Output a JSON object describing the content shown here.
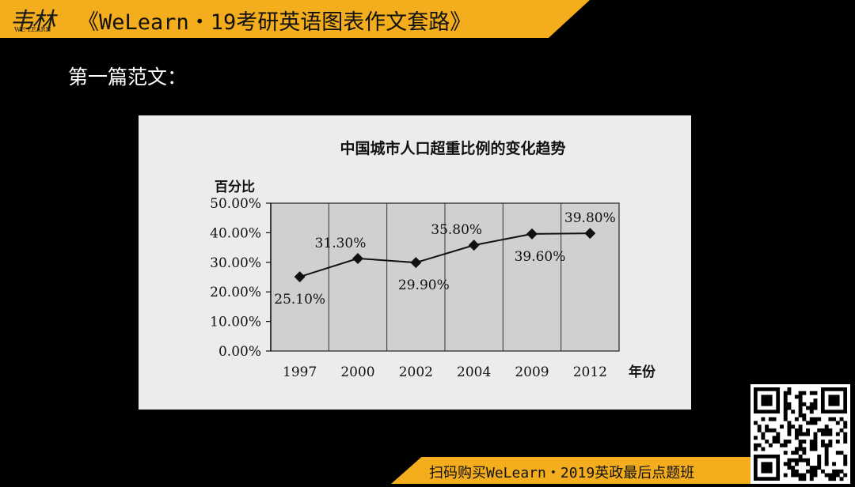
{
  "header": {
    "logo_cn": "韦林",
    "logo_en": "WE LEARN",
    "title": "《WeLearn・19考研英语图表作文套路》"
  },
  "section_title": "第一篇范文：",
  "chart_data": {
    "type": "line",
    "title": "中国城市人口超重比例的变化趋势",
    "ylabel": "百分比",
    "xlabel": "年份",
    "categories": [
      "1997",
      "2000",
      "2002",
      "2004",
      "2009",
      "2012"
    ],
    "series": [
      {
        "values": [
          25.1,
          31.3,
          29.9,
          35.8,
          39.6,
          39.8
        ]
      }
    ],
    "data_labels": [
      "25.10%",
      "31.30%",
      "29.90%",
      "35.80%",
      "39.60%",
      "39.80%"
    ],
    "yticks": [
      "0.00%",
      "10.00%",
      "20.00%",
      "30.00%",
      "40.00%",
      "50.00%"
    ],
    "ylim": [
      0,
      50
    ],
    "grid": "vertical",
    "marker": "diamond"
  },
  "footer": {
    "text": "扫码购买WeLearn・2019英政最后点题班"
  },
  "colors": {
    "accent": "#f3ad1d",
    "background": "#000000",
    "chart_panel": "#ececec",
    "plot_area": "#d0d0d0"
  }
}
